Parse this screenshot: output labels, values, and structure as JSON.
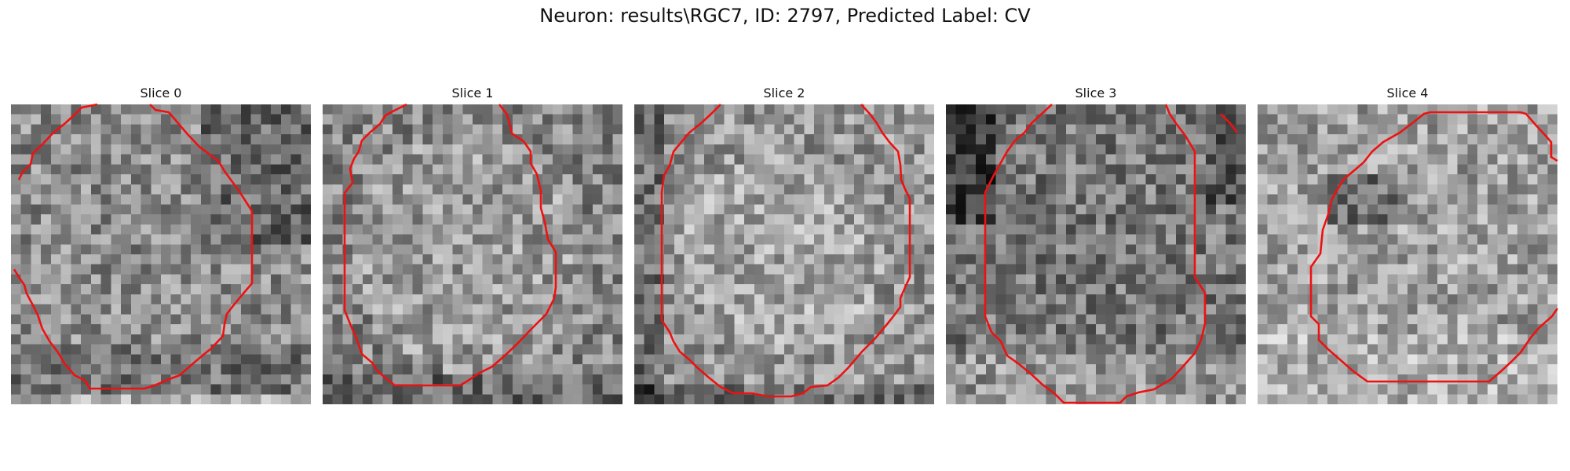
{
  "title": "Neuron: results\\RGC7, ID: 2797, Predicted Label: CV",
  "colors": {
    "contour": "#ee1111",
    "background": "#ffffff"
  },
  "slices": [
    {
      "label": "Slice 0"
    },
    {
      "label": "Slice 1"
    },
    {
      "label": "Slice 2"
    },
    {
      "label": "Slice 3"
    },
    {
      "label": "Slice 4"
    }
  ]
}
